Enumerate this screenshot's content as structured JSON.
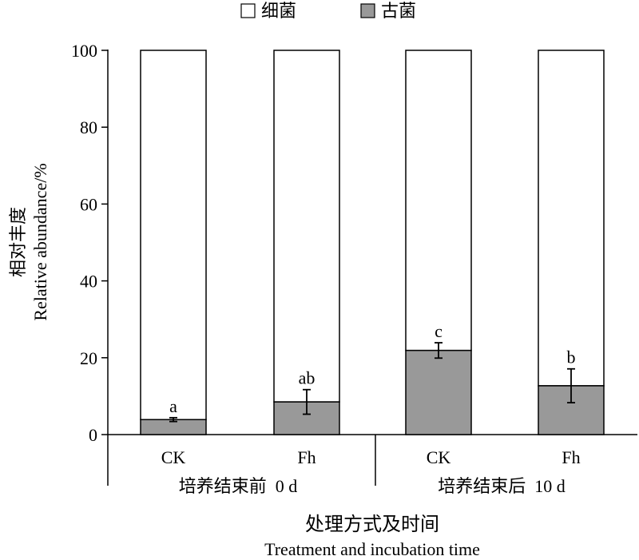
{
  "chart_data": {
    "type": "bar",
    "stacked": true,
    "normalized_to": 100,
    "legend": {
      "placement": "top-center",
      "items": [
        {
          "label": "细菌",
          "color": "#ffffff"
        },
        {
          "label": "古菌",
          "color": "#999999"
        }
      ]
    },
    "ylabel_cn": "相对丰度",
    "ylabel_en": "Relative abundance/%",
    "ylim": [
      0,
      100
    ],
    "yticks": [
      0,
      20,
      40,
      60,
      80,
      100
    ],
    "xlabel_cn": "处理方式及时间",
    "xlabel_en": "Treatment and incubation time",
    "groups": [
      {
        "label": "培养结束前  0 d"
      },
      {
        "label": "培养结束后  10 d"
      }
    ],
    "bars": [
      {
        "label": "CK",
        "group": 0,
        "archaea": 3.9,
        "bacteria": 96.1,
        "error": 0.5,
        "letter": "a"
      },
      {
        "label": "Fh",
        "group": 0,
        "archaea": 8.5,
        "bacteria": 91.5,
        "error": 3.2,
        "letter": "ab"
      },
      {
        "label": "CK",
        "group": 1,
        "archaea": 21.9,
        "bacteria": 78.1,
        "error": 2.0,
        "letter": "c"
      },
      {
        "label": "Fh",
        "group": 1,
        "archaea": 12.7,
        "bacteria": 87.3,
        "error": 4.4,
        "letter": "b"
      }
    ]
  }
}
